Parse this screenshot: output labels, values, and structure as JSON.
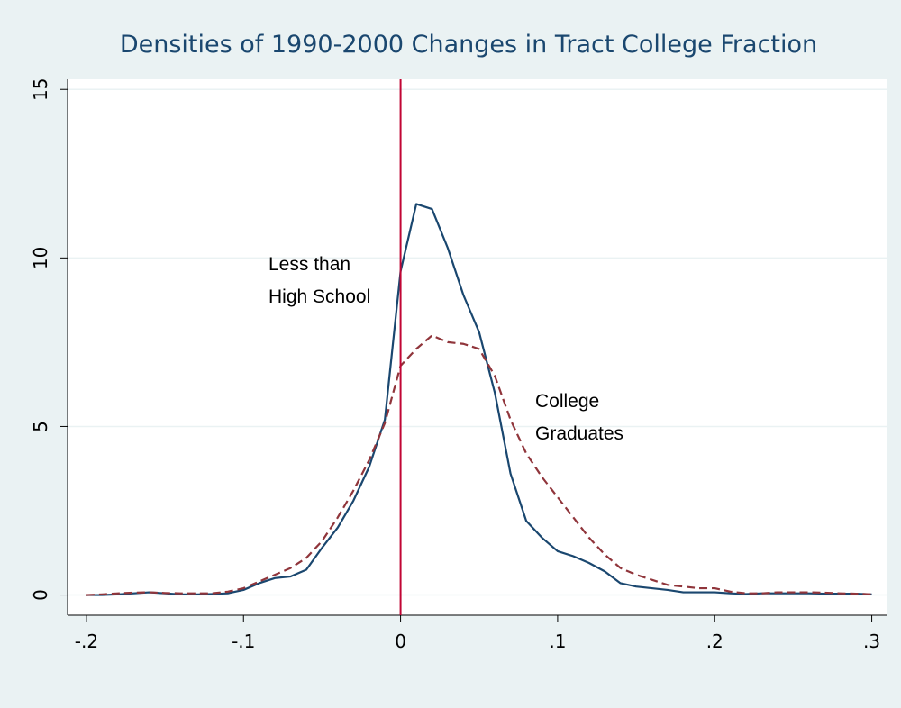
{
  "chart_data": {
    "type": "line",
    "title": "Densities of 1990-2000 Changes in Tract College Fraction",
    "x": [
      -0.2,
      -0.19,
      -0.18,
      -0.17,
      -0.16,
      -0.15,
      -0.14,
      -0.13,
      -0.12,
      -0.11,
      -0.1,
      -0.09,
      -0.08,
      -0.07,
      -0.06,
      -0.05,
      -0.04,
      -0.03,
      -0.02,
      -0.01,
      0,
      0.01,
      0.02,
      0.03,
      0.04,
      0.05,
      0.06,
      0.07,
      0.08,
      0.09,
      0.1,
      0.11,
      0.12,
      0.13,
      0.14,
      0.15,
      0.16,
      0.17,
      0.18,
      0.19,
      0.2,
      0.21,
      0.22,
      0.23,
      0.24,
      0.25,
      0.26,
      0.27,
      0.28,
      0.29,
      0.3
    ],
    "series": [
      {
        "color": "#1a476f",
        "dash": false,
        "values": [
          0,
          0,
          0.02,
          0.05,
          0.08,
          0.05,
          0.02,
          0.02,
          0.03,
          0.05,
          0.15,
          0.35,
          0.5,
          0.55,
          0.75,
          1.4,
          2.0,
          2.8,
          3.8,
          5.2,
          9.6,
          11.6,
          11.45,
          10.3,
          8.9,
          7.8,
          6.0,
          3.6,
          2.2,
          1.7,
          1.3,
          1.15,
          0.95,
          0.7,
          0.35,
          0.25,
          0.2,
          0.15,
          0.08,
          0.08,
          0.08,
          0.05,
          0.03,
          0.05,
          0.05,
          0.05,
          0.05,
          0.04,
          0.04,
          0.04,
          0.02
        ]
      },
      {
        "color": "#90353b",
        "dash": true,
        "values": [
          0,
          0.02,
          0.05,
          0.07,
          0.08,
          0.06,
          0.05,
          0.05,
          0.05,
          0.1,
          0.2,
          0.4,
          0.6,
          0.8,
          1.1,
          1.6,
          2.3,
          3.1,
          4.0,
          5.1,
          6.8,
          7.3,
          7.7,
          7.5,
          7.45,
          7.3,
          6.5,
          5.2,
          4.2,
          3.5,
          2.9,
          2.3,
          1.7,
          1.2,
          0.8,
          0.6,
          0.45,
          0.3,
          0.25,
          0.2,
          0.2,
          0.1,
          0.05,
          0.05,
          0.08,
          0.08,
          0.08,
          0.07,
          0.05,
          0.04,
          0.02
        ]
      }
    ],
    "annotations": [
      [
        "Less than",
        "High School"
      ],
      [
        "College",
        "Graduates"
      ]
    ],
    "vline": 0,
    "vline_color": "#c10534",
    "xlim": [
      -0.212,
      0.31
    ],
    "xticks": [
      {
        "value": -0.2,
        "label": "-.2"
      },
      {
        "value": -0.1,
        "label": "-.1"
      },
      0,
      {
        "value": 0.1,
        "label": ".1"
      },
      {
        "value": 0.2,
        "label": ".2"
      },
      {
        "value": 0.3,
        "label": ".3"
      }
    ],
    "ylim": [
      -0.6,
      15.3
    ],
    "yticks": [
      0,
      5,
      10,
      15
    ],
    "grid": true
  }
}
